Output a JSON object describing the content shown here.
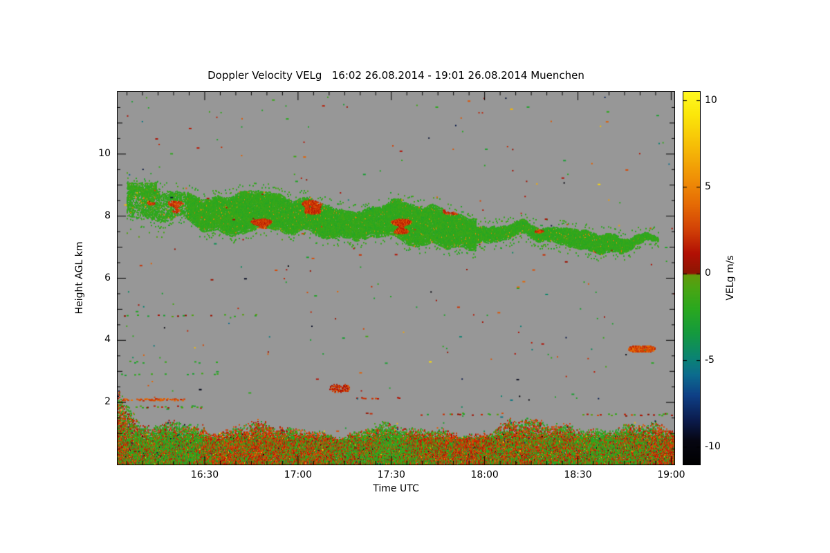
{
  "chart": {
    "title": "Doppler Velocity VELg   16:02 26.08.2014 - 19:01 26.08.2014 Muenchen",
    "xlabel": "Time UTC",
    "ylabel": "Height AGL km",
    "colorbar_label": "VELg m/s"
  },
  "chart_data": {
    "type": "heatmap",
    "title": "Doppler Velocity VELg 16:02 26.08.2014 - 19:01 26.08.2014 Muenchen",
    "instrument_product": "Doppler Velocity VELg",
    "time_start": "16:02 26.08.2014",
    "time_end": "19:01 26.08.2014",
    "station": "Muenchen",
    "xlabel": "Time UTC",
    "ylabel": "Height AGL km",
    "x_range_hours": [
      16.033,
      19.017
    ],
    "x_ticks": [
      {
        "label": "16:30",
        "hour": 16.5
      },
      {
        "label": "17:00",
        "hour": 17.0
      },
      {
        "label": "17:30",
        "hour": 17.5
      },
      {
        "label": "18:00",
        "hour": 18.0
      },
      {
        "label": "18:30",
        "hour": 18.5
      },
      {
        "label": "19:00",
        "hour": 19.0
      }
    ],
    "x_minor_tick_minutes": 5,
    "y_range_km": [
      0,
      12
    ],
    "y_ticks": [
      {
        "label": "2",
        "km": 2
      },
      {
        "label": "4",
        "km": 4
      },
      {
        "label": "6",
        "km": 6
      },
      {
        "label": "8",
        "km": 8
      },
      {
        "label": "10",
        "km": 10
      }
    ],
    "y_minor_tick_km": 0.5,
    "no_data_color": "#979797",
    "colorbar": {
      "label": "VELg m/s",
      "units": "m/s",
      "value_range": [
        -11,
        10.5
      ],
      "ticks": [
        {
          "label": "10",
          "value": 10
        },
        {
          "label": "5",
          "value": 5
        },
        {
          "label": "0",
          "value": 0
        },
        {
          "label": "-5",
          "value": -5
        },
        {
          "label": "-10",
          "value": -10
        }
      ],
      "stops": [
        [
          -11.0,
          "#000000"
        ],
        [
          -9.6,
          "#060612"
        ],
        [
          -8.4,
          "#0b1c4e"
        ],
        [
          -7.0,
          "#0e3f86"
        ],
        [
          -5.8,
          "#0c6c8e"
        ],
        [
          -4.8,
          "#0b8472"
        ],
        [
          -3.4,
          "#149a3e"
        ],
        [
          -2.0,
          "#2aa81f"
        ],
        [
          -0.8,
          "#4aa513"
        ],
        [
          -0.05,
          "#63990c"
        ],
        [
          0.05,
          "#8c1603"
        ],
        [
          1.2,
          "#b21004"
        ],
        [
          2.6,
          "#d24206"
        ],
        [
          4.0,
          "#e56a05"
        ],
        [
          5.4,
          "#ef8d06"
        ],
        [
          7.4,
          "#f6bd07"
        ],
        [
          9.2,
          "#fbe70a"
        ],
        [
          10.5,
          "#fff820"
        ]
      ]
    },
    "features": {
      "cloud_band": {
        "description": "Mid-level cloud layer, mostly weak negative velocities (green) with embedded positive (orange/red) patches, descending slowly with time",
        "t_start": 16.08,
        "t_end": 18.93,
        "center_km_start": 8.4,
        "center_km_end": 7.1,
        "half_thickness_km": 0.55,
        "half_thickness_km_late": 0.26,
        "thin_after_t": 17.95,
        "mean_velocity": -1.7,
        "velocity_spread": 1.1,
        "positive_patch_velocity_min": 1.2,
        "positive_patch_velocity_max": 3.4,
        "fill_density": 0.93
      },
      "boundary_layer": {
        "description": "Aerosol boundary layer near the ground with mixed up/downdrafts",
        "t_start": 16.033,
        "t_end": 19.017,
        "top_km_mean": 1.12,
        "top_km_variation": 0.3,
        "left_edge_top_km": 2.4,
        "velocity_negative_mean": -1.8,
        "velocity_positive_mean": 2.2
      },
      "sparse_rows": [
        {
          "t0": 16.05,
          "t1": 16.4,
          "km": 2.08,
          "prob": 0.5,
          "v_min": 1.5,
          "v_max": 4.5
        },
        {
          "t0": 16.05,
          "t1": 16.5,
          "km": 1.85,
          "prob": 0.22,
          "v_min": -3.0,
          "v_max": 2.0
        },
        {
          "t0": 16.05,
          "t1": 16.8,
          "km": 4.8,
          "prob": 0.09,
          "v_min": -3.0,
          "v_max": 1.0
        },
        {
          "t0": 16.05,
          "t1": 16.6,
          "km": 2.9,
          "prob": 0.08,
          "v_min": -3.0,
          "v_max": -1.0
        },
        {
          "t0": 16.05,
          "t1": 16.6,
          "km": 3.3,
          "prob": 0.06,
          "v_min": -3.0,
          "v_max": -1.0
        },
        {
          "t0": 17.6,
          "t1": 18.2,
          "km": 1.62,
          "prob": 0.12,
          "v_min": -3.0,
          "v_max": 3.0
        },
        {
          "t0": 18.5,
          "t1": 19.0,
          "km": 1.6,
          "prob": 0.15,
          "v_min": -2.0,
          "v_max": 3.0
        },
        {
          "t0": 17.3,
          "t1": 17.55,
          "km": 2.15,
          "prob": 0.1,
          "v_min": 1.0,
          "v_max": 3.0
        }
      ],
      "blobs": [
        {
          "t": 18.84,
          "km": 3.72,
          "t_halfwidth": 0.075,
          "h_km": 0.24,
          "v_min": 1.5,
          "v_max": 4.5,
          "density": 0.8
        },
        {
          "t": 17.22,
          "km": 2.45,
          "t_halfwidth": 0.055,
          "h_km": 0.3,
          "v_min": 0.5,
          "v_max": 4.0,
          "density": 0.45
        }
      ],
      "speckle_count": 300
    }
  }
}
